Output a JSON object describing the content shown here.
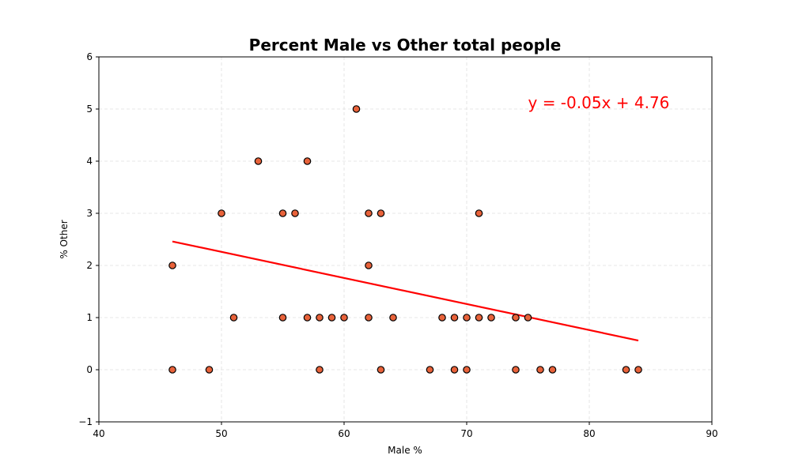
{
  "chart_data": {
    "type": "scatter",
    "title": "Percent Male vs Other total people",
    "xlabel": "Male %",
    "ylabel": "% Other",
    "xlim": [
      40,
      90
    ],
    "ylim": [
      -1,
      6
    ],
    "xticks": [
      40,
      50,
      60,
      70,
      80,
      90
    ],
    "yticks": [
      -1,
      0,
      1,
      2,
      3,
      4,
      5,
      6
    ],
    "xtick_labels": [
      "40",
      "50",
      "60",
      "70",
      "80",
      "90"
    ],
    "ytick_labels": [
      "−1",
      "0",
      "1",
      "2",
      "3",
      "4",
      "5",
      "6"
    ],
    "grid": true,
    "point_color": "#e8623a",
    "point_edge_color": "#000000",
    "line_color": "#ff0000",
    "points": [
      {
        "x": 46,
        "y": 2
      },
      {
        "x": 46,
        "y": 0
      },
      {
        "x": 49,
        "y": 0
      },
      {
        "x": 50,
        "y": 3
      },
      {
        "x": 51,
        "y": 1
      },
      {
        "x": 53,
        "y": 4
      },
      {
        "x": 55,
        "y": 3
      },
      {
        "x": 55,
        "y": 1
      },
      {
        "x": 56,
        "y": 3
      },
      {
        "x": 57,
        "y": 4
      },
      {
        "x": 57,
        "y": 1
      },
      {
        "x": 58,
        "y": 1
      },
      {
        "x": 58,
        "y": 0
      },
      {
        "x": 59,
        "y": 1
      },
      {
        "x": 60,
        "y": 1
      },
      {
        "x": 61,
        "y": 5
      },
      {
        "x": 62,
        "y": 3
      },
      {
        "x": 62,
        "y": 2
      },
      {
        "x": 62,
        "y": 1
      },
      {
        "x": 63,
        "y": 3
      },
      {
        "x": 63,
        "y": 0
      },
      {
        "x": 64,
        "y": 1
      },
      {
        "x": 67,
        "y": 0
      },
      {
        "x": 68,
        "y": 1
      },
      {
        "x": 69,
        "y": 1
      },
      {
        "x": 69,
        "y": 0
      },
      {
        "x": 70,
        "y": 1
      },
      {
        "x": 70,
        "y": 0
      },
      {
        "x": 71,
        "y": 3
      },
      {
        "x": 71,
        "y": 1
      },
      {
        "x": 72,
        "y": 1
      },
      {
        "x": 74,
        "y": 1
      },
      {
        "x": 74,
        "y": 0
      },
      {
        "x": 75,
        "y": 1
      },
      {
        "x": 76,
        "y": 0
      },
      {
        "x": 77,
        "y": 0
      },
      {
        "x": 83,
        "y": 0
      },
      {
        "x": 84,
        "y": 0
      }
    ],
    "regression": {
      "slope": -0.05,
      "intercept": 4.76,
      "x_range": [
        46,
        84
      ]
    },
    "annotation": {
      "text": "y = -0.05x + 4.76",
      "x": 75,
      "y": 5
    }
  }
}
